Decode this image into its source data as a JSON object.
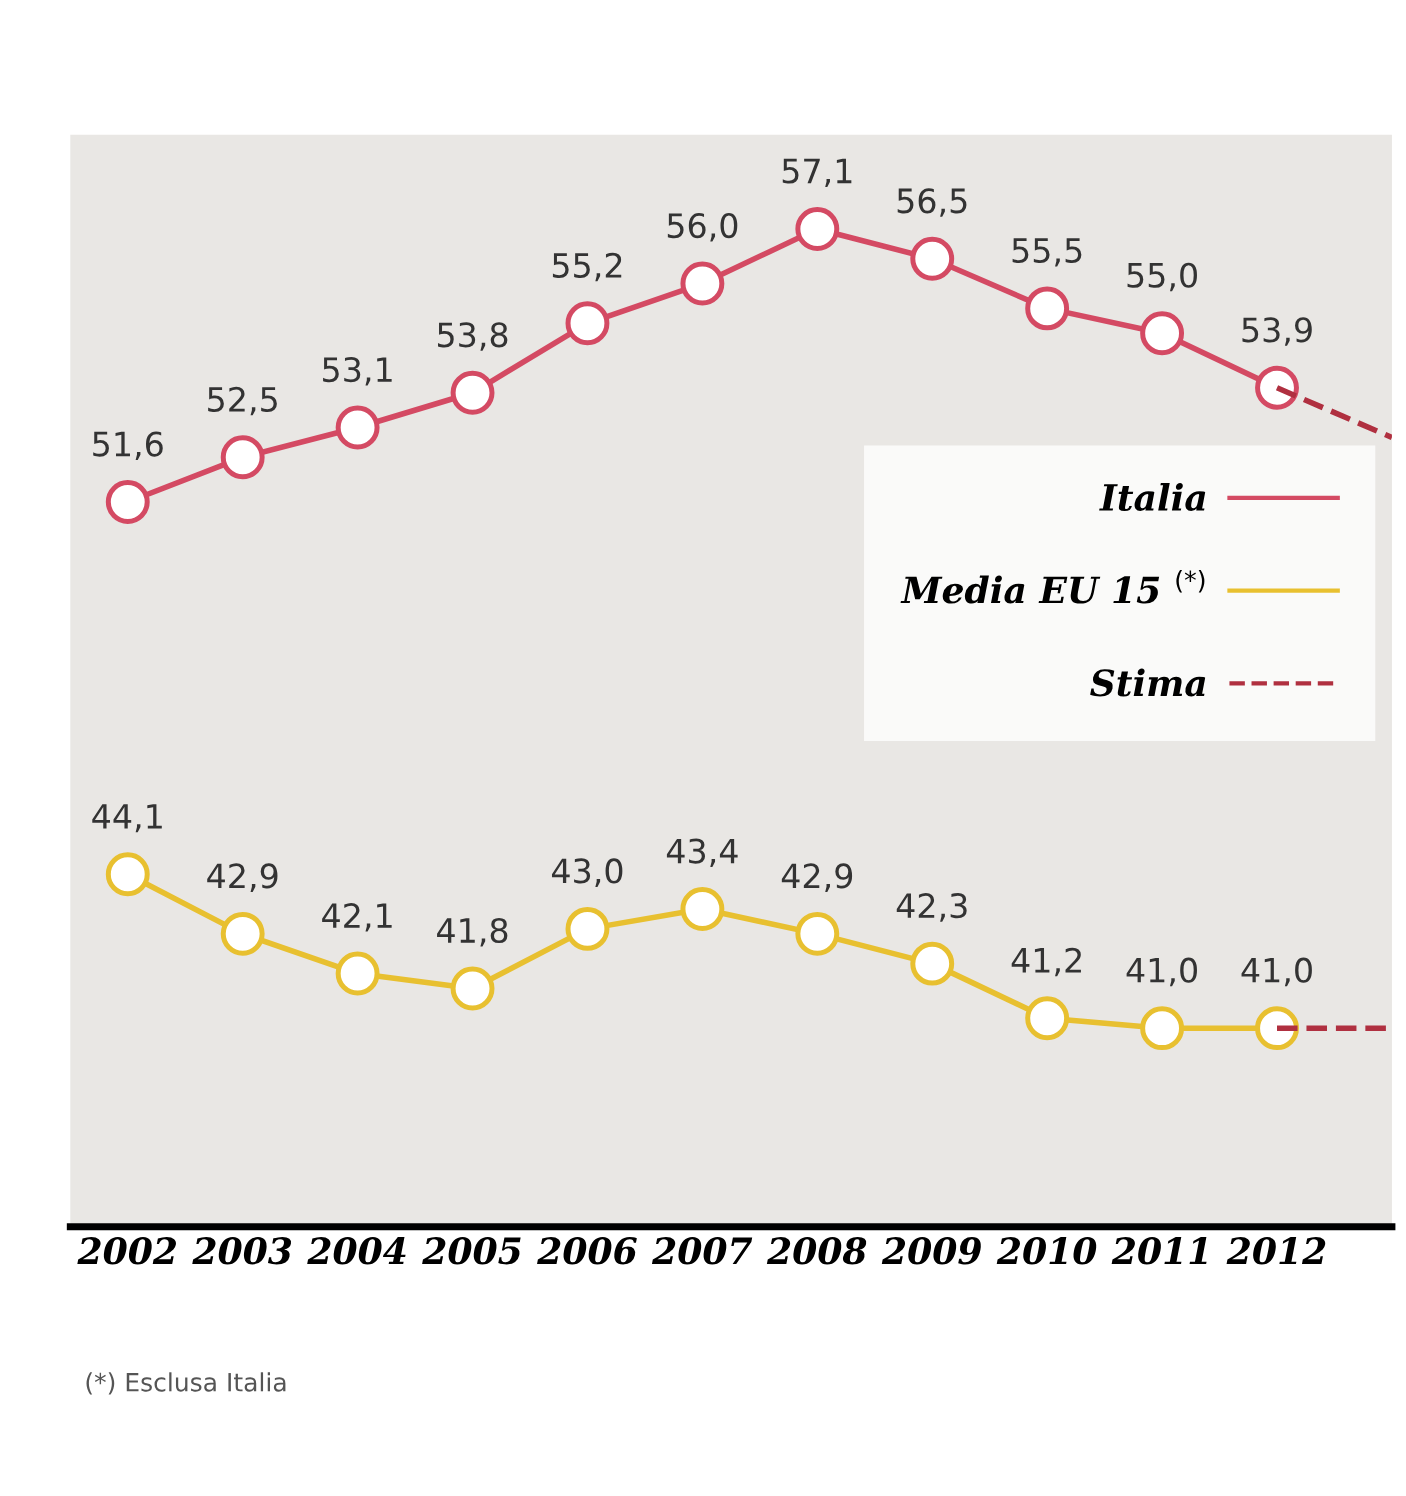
{
  "chart_data": {
    "type": "line",
    "categories": [
      "2002",
      "2003",
      "2004",
      "2005",
      "2006",
      "2007",
      "2008",
      "2009",
      "2010",
      "2011",
      "2012",
      null
    ],
    "series": [
      {
        "name": "Italia",
        "color": "#d44a63",
        "values": [
          51.6,
          52.5,
          53.1,
          53.8,
          55.2,
          56.0,
          57.1,
          56.5,
          55.5,
          55.0,
          53.9,
          null
        ],
        "value_labels": [
          "51,6",
          "52,5",
          "53,1",
          "53,8",
          "55,2",
          "56,0",
          "57,1",
          "56,5",
          "55,5",
          "55,0",
          "53,9",
          null
        ]
      },
      {
        "name": "Media EU 15 $^{(*)}$",
        "color": "#e8c030",
        "values": [
          44.1,
          42.9,
          42.1,
          41.8,
          43.0,
          43.4,
          42.9,
          42.3,
          41.2,
          41.0,
          41.0,
          null
        ],
        "value_labels": [
          "44,1",
          "42,9",
          "42,1",
          "41,8",
          "43,0",
          "43,4",
          "42,9",
          "42,3",
          "41,2",
          "41,0",
          "41,0",
          null
        ]
      },
      {
        "name": "Stima",
        "color": "#b03040",
        "line_style": "dashed",
        "marker": "none",
        "values": [
          null,
          null,
          null,
          null,
          null,
          null,
          null,
          null,
          null,
          null,
          53.9,
          52.9
        ]
      },
      {
        "color": "#b03040",
        "line_style": "dashed",
        "marker": "none",
        "values": [
          null,
          null,
          null,
          null,
          null,
          null,
          null,
          null,
          null,
          null,
          41.0,
          41.0
        ]
      }
    ],
    "marker": "circle",
    "line_style": "solid",
    "ylim": [
      37,
      59
    ],
    "tick_labels": "x",
    "grid": false,
    "legend": "right",
    "annotations": [
      "(*) Esclusa Italia"
    ]
  }
}
